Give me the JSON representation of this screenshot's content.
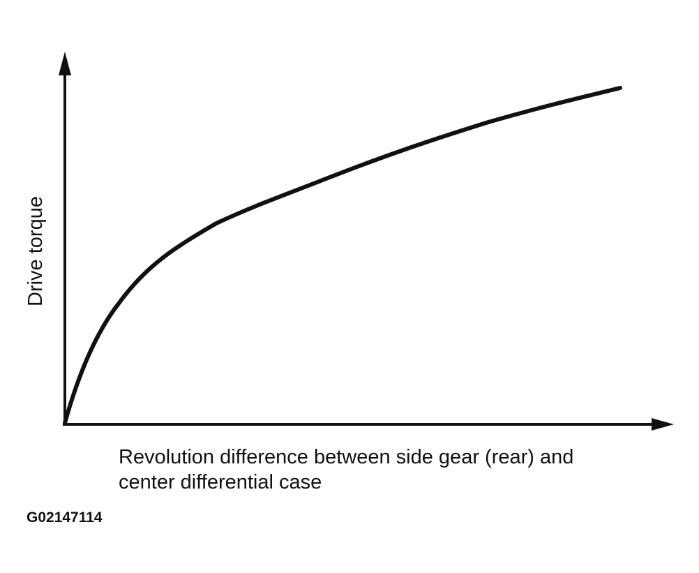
{
  "y_label": "Drive torque",
  "x_label": [
    "Revolution difference between side gear (rear) and",
    "center differential case"
  ],
  "figure_id": "G02147114"
}
